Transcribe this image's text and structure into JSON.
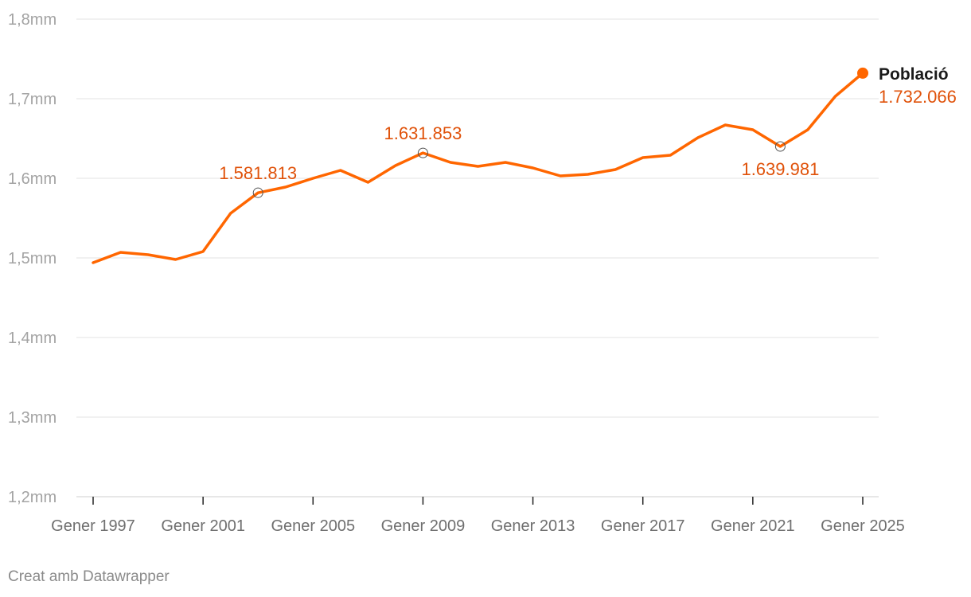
{
  "chart_data": {
    "type": "line",
    "title": "",
    "xlabel": "",
    "ylabel": "",
    "ylim": [
      1200000,
      1800000
    ],
    "yticks": [
      {
        "value": 1200000,
        "label": "1,2mm"
      },
      {
        "value": 1300000,
        "label": "1,3mm"
      },
      {
        "value": 1400000,
        "label": "1,4mm"
      },
      {
        "value": 1500000,
        "label": "1,5mm"
      },
      {
        "value": 1600000,
        "label": "1,6mm"
      },
      {
        "value": 1700000,
        "label": "1,7mm"
      },
      {
        "value": 1800000,
        "label": "1,8mm"
      }
    ],
    "xlim": [
      1997,
      2025
    ],
    "xticks": [
      {
        "value": 1997,
        "label": "Gener 1997"
      },
      {
        "value": 2001,
        "label": "Gener 2001"
      },
      {
        "value": 2005,
        "label": "Gener 2005"
      },
      {
        "value": 2009,
        "label": "Gener 2009"
      },
      {
        "value": 2013,
        "label": "Gener 2013"
      },
      {
        "value": 2017,
        "label": "Gener 2017"
      },
      {
        "value": 2021,
        "label": "Gener 2021"
      },
      {
        "value": 2025,
        "label": "Gener 2025"
      }
    ],
    "series": [
      {
        "name": "Població",
        "color": "#ff6600",
        "x": [
          1997,
          1998,
          1999,
          2000,
          2001,
          2002,
          2003,
          2004,
          2005,
          2006,
          2007,
          2008,
          2009,
          2010,
          2011,
          2012,
          2013,
          2014,
          2015,
          2016,
          2017,
          2018,
          2019,
          2020,
          2021,
          2022,
          2023,
          2024,
          2025
        ],
        "values": [
          1494000,
          1507000,
          1504000,
          1498000,
          1508000,
          1556000,
          1581813,
          1589000,
          1600000,
          1610000,
          1595000,
          1616000,
          1631853,
          1620000,
          1615000,
          1620000,
          1613000,
          1603000,
          1605000,
          1611000,
          1626000,
          1629000,
          1651000,
          1667000,
          1661000,
          1639981,
          1661000,
          1703000,
          1732066
        ],
        "end_value_label": "1.732.066"
      }
    ],
    "annotations": [
      {
        "x": 2003,
        "value": 1581813,
        "label": "1.581.813",
        "position": "above"
      },
      {
        "x": 2009,
        "value": 1631853,
        "label": "1.631.853",
        "position": "above"
      },
      {
        "x": 2022,
        "value": 1639981,
        "label": "1.639.981",
        "position": "below"
      }
    ],
    "annotation_color": "#e0520a",
    "grid": true,
    "grid_color": "#e3e3e3",
    "legend": "end-of-line"
  },
  "footer": "Creat amb Datawrapper"
}
